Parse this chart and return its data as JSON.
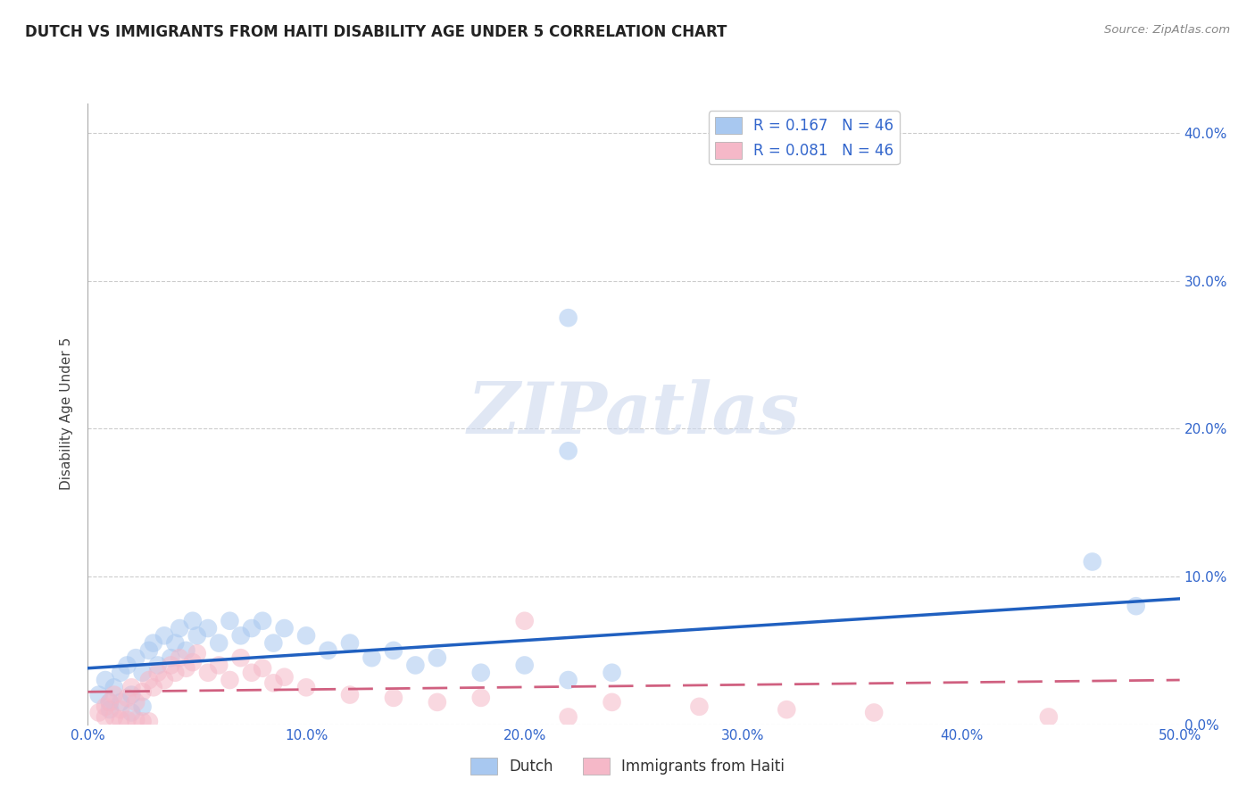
{
  "title": "DUTCH VS IMMIGRANTS FROM HAITI DISABILITY AGE UNDER 5 CORRELATION CHART",
  "source": "Source: ZipAtlas.com",
  "ylabel": "Disability Age Under 5",
  "watermark": "ZIPatlas",
  "xlim": [
    0.0,
    0.5
  ],
  "ylim": [
    0.0,
    0.42
  ],
  "xticks": [
    0.0,
    0.1,
    0.2,
    0.3,
    0.4,
    0.5
  ],
  "yticks": [
    0.0,
    0.1,
    0.2,
    0.3,
    0.4
  ],
  "ytick_labels_right": [
    "0.0%",
    "10.0%",
    "20.0%",
    "30.0%",
    "40.0%"
  ],
  "xtick_labels": [
    "0.0%",
    "10.0%",
    "20.0%",
    "30.0%",
    "40.0%",
    "50.0%"
  ],
  "legend_entries": [
    {
      "label": "Dutch",
      "R": "0.167",
      "N": "46",
      "color": "#a8c8f0"
    },
    {
      "label": "Immigrants from Haiti",
      "R": "0.081",
      "N": "46",
      "color": "#f5b8c8"
    }
  ],
  "dutch_color": "#a8c8f0",
  "dutch_line_color": "#2060c0",
  "haiti_color": "#f5b8c8",
  "haiti_line_color": "#d06080",
  "dutch_points_x": [
    0.005,
    0.008,
    0.01,
    0.012,
    0.015,
    0.018,
    0.02,
    0.022,
    0.025,
    0.028,
    0.03,
    0.032,
    0.035,
    0.038,
    0.04,
    0.042,
    0.045,
    0.048,
    0.05,
    0.055,
    0.06,
    0.065,
    0.07,
    0.075,
    0.08,
    0.085,
    0.09,
    0.1,
    0.11,
    0.12,
    0.13,
    0.14,
    0.15,
    0.16,
    0.18,
    0.2,
    0.22,
    0.24,
    0.22,
    0.22,
    0.46,
    0.48,
    0.01,
    0.015,
    0.02,
    0.025
  ],
  "dutch_points_y": [
    0.02,
    0.03,
    0.015,
    0.025,
    0.035,
    0.04,
    0.02,
    0.045,
    0.035,
    0.05,
    0.055,
    0.04,
    0.06,
    0.045,
    0.055,
    0.065,
    0.05,
    0.07,
    0.06,
    0.065,
    0.055,
    0.07,
    0.06,
    0.065,
    0.07,
    0.055,
    0.065,
    0.06,
    0.05,
    0.055,
    0.045,
    0.05,
    0.04,
    0.045,
    0.035,
    0.04,
    0.03,
    0.035,
    0.185,
    0.275,
    0.11,
    0.08,
    0.01,
    0.015,
    0.008,
    0.012
  ],
  "haiti_points_x": [
    0.005,
    0.008,
    0.01,
    0.012,
    0.015,
    0.018,
    0.02,
    0.022,
    0.025,
    0.028,
    0.03,
    0.032,
    0.035,
    0.038,
    0.04,
    0.042,
    0.045,
    0.048,
    0.05,
    0.055,
    0.06,
    0.065,
    0.07,
    0.075,
    0.08,
    0.085,
    0.09,
    0.1,
    0.12,
    0.14,
    0.16,
    0.18,
    0.2,
    0.24,
    0.28,
    0.32,
    0.36,
    0.44,
    0.22,
    0.008,
    0.012,
    0.015,
    0.018,
    0.022,
    0.025,
    0.028
  ],
  "haiti_points_y": [
    0.008,
    0.012,
    0.015,
    0.02,
    0.01,
    0.018,
    0.025,
    0.015,
    0.022,
    0.03,
    0.025,
    0.035,
    0.03,
    0.04,
    0.035,
    0.045,
    0.038,
    0.042,
    0.048,
    0.035,
    0.04,
    0.03,
    0.045,
    0.035,
    0.038,
    0.028,
    0.032,
    0.025,
    0.02,
    0.018,
    0.015,
    0.018,
    0.07,
    0.015,
    0.012,
    0.01,
    0.008,
    0.005,
    0.005,
    0.005,
    0.005,
    0.003,
    0.003,
    0.003,
    0.002,
    0.002
  ],
  "dutch_trend_x": [
    0.0,
    0.5
  ],
  "dutch_trend_y": [
    0.038,
    0.085
  ],
  "haiti_trend_x": [
    0.0,
    0.5
  ],
  "haiti_trend_y": [
    0.022,
    0.03
  ]
}
